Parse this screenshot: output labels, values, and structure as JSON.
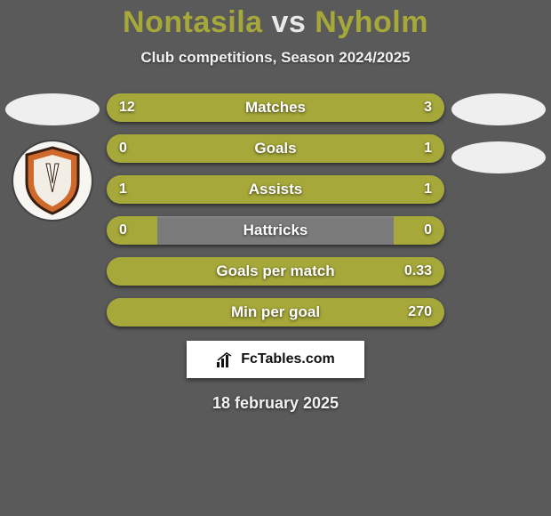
{
  "background_color": "#5a5a5a",
  "title": {
    "player1": "Nontasila",
    "vs": "vs",
    "player2": "Nyholm",
    "color_players": "#a6a83a",
    "color_vs": "#e8e8e8",
    "fontsize": 34
  },
  "subtitle": {
    "text": "Club competitions, Season 2024/2025",
    "color": "#f2f2f2",
    "fontsize": 17
  },
  "players": {
    "left": {
      "face_placeholder_color": "#efefef",
      "club_badge": {
        "name": "bangkok-glass",
        "bg": "#f7f6f2",
        "shield_fill": "#d06a2c",
        "shield_stroke": "#3a1f10",
        "inner_fill": "#f2eee6"
      }
    },
    "right": {
      "face_placeholder_color": "#efefef",
      "club_badge_placeholder_color": "#efefef"
    }
  },
  "bars": {
    "common": {
      "height": 32,
      "radius": 16,
      "neutral_color": "#7b7b7b",
      "label_color": "#ffffff",
      "value_color": "#ffffff",
      "label_fontsize": 17,
      "value_fontsize": 16
    },
    "left_color": "#a6a83a",
    "right_color": "#a6a83a",
    "rows": [
      {
        "label": "Matches",
        "left": "12",
        "right": "3",
        "left_pct": 70,
        "right_pct": 30
      },
      {
        "label": "Goals",
        "left": "0",
        "right": "1",
        "left_pct": 15,
        "right_pct": 85
      },
      {
        "label": "Assists",
        "left": "1",
        "right": "1",
        "left_pct": 50,
        "right_pct": 50
      },
      {
        "label": "Hattricks",
        "left": "0",
        "right": "0",
        "left_pct": 15,
        "right_pct": 15
      },
      {
        "label": "Goals per match",
        "left": "",
        "right": "0.33",
        "left_pct": 15,
        "right_pct": 85
      },
      {
        "label": "Min per goal",
        "left": "",
        "right": "270",
        "left_pct": 15,
        "right_pct": 85
      }
    ]
  },
  "credit": {
    "text": "FcTables.com",
    "icon_name": "fctables-logo",
    "bg": "#ffffff",
    "color": "#111111",
    "fontsize": 16
  },
  "date": {
    "text": "18 february 2025",
    "color": "#f2f2f2",
    "fontsize": 18
  }
}
